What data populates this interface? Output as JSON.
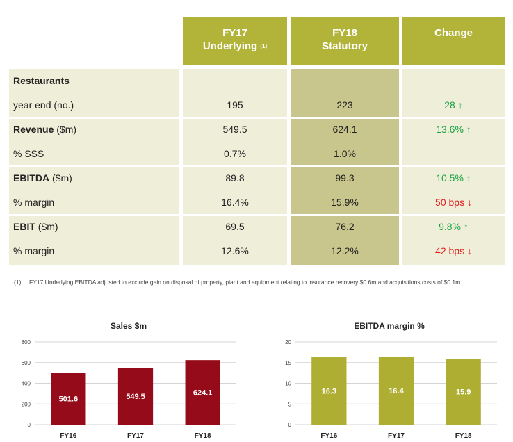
{
  "table": {
    "headers": [
      {
        "line1": "FY17",
        "line2": "Underlying",
        "sup": "(1)"
      },
      {
        "line1": "FY18",
        "line2": "Statutory",
        "sup": ""
      },
      {
        "line1": "Change",
        "line2": "",
        "sup": ""
      }
    ],
    "rows": [
      {
        "label": "Restaurants",
        "unit": "",
        "bold": true,
        "fy17": "",
        "fy18": "",
        "change": "",
        "dir": ""
      },
      {
        "label": "year end (no.)",
        "unit": "",
        "bold": false,
        "fy17": "195",
        "fy18": "223",
        "change": "28",
        "dir": "up"
      },
      {
        "label": "Revenue",
        "unit": " ($m)",
        "bold": true,
        "fy17": "549.5",
        "fy18": "624.1",
        "change": "13.6%",
        "dir": "up"
      },
      {
        "label": "% SSS",
        "unit": "",
        "bold": false,
        "fy17": "0.7%",
        "fy18": "1.0%",
        "change": "",
        "dir": ""
      },
      {
        "label": "EBITDA",
        "unit": " ($m)",
        "bold": true,
        "fy17": "89.8",
        "fy18": "99.3",
        "change": "10.5%",
        "dir": "up"
      },
      {
        "label": "% margin",
        "unit": "",
        "bold": false,
        "fy17": "16.4%",
        "fy18": "15.9%",
        "change": "50 bps",
        "dir": "down"
      },
      {
        "label": "EBIT",
        "unit": " ($m)",
        "bold": true,
        "fy17": "69.5",
        "fy18": "76.2",
        "change": "9.8%",
        "dir": "up"
      },
      {
        "label": "% margin",
        "unit": "",
        "bold": false,
        "fy17": "12.6%",
        "fy18": "12.2%",
        "change": "42 bps",
        "dir": "down"
      }
    ]
  },
  "footnote": {
    "number": "(1)",
    "text": "FY17 Underlying EBITDA adjusted to exclude gain on disposal of property, plant and equipment relating to insurance recovery $0.6m and acquisitions costs of $0.1m"
  },
  "colors": {
    "header_bg": "#b2b43a",
    "row_bg": "#efeed9",
    "highlight_col": "#c8c68c",
    "sales_bar": "#960b19",
    "margin_bar": "#aeae32",
    "positive": "#1aa244",
    "negative": "#e02020"
  },
  "chart_data": [
    {
      "type": "bar",
      "title": "Sales $m",
      "categories": [
        "FY16",
        "FY17",
        "FY18"
      ],
      "values": [
        501.6,
        549.5,
        624.1
      ],
      "value_labels": [
        "501.6",
        "549.5",
        "624.1"
      ],
      "ylim": [
        0,
        800
      ],
      "yticks": [
        "0",
        "200",
        "400",
        "600",
        "800"
      ],
      "grid": true
    },
    {
      "type": "bar",
      "title": "EBITDA margin %",
      "categories": [
        "FY16",
        "FY17",
        "FY18"
      ],
      "values": [
        16.3,
        16.4,
        15.9
      ],
      "value_labels": [
        "16.3",
        "16.4",
        "15.9"
      ],
      "ylim": [
        0,
        20
      ],
      "yticks": [
        "0",
        "5",
        "10",
        "15",
        "20"
      ],
      "grid": true
    }
  ]
}
